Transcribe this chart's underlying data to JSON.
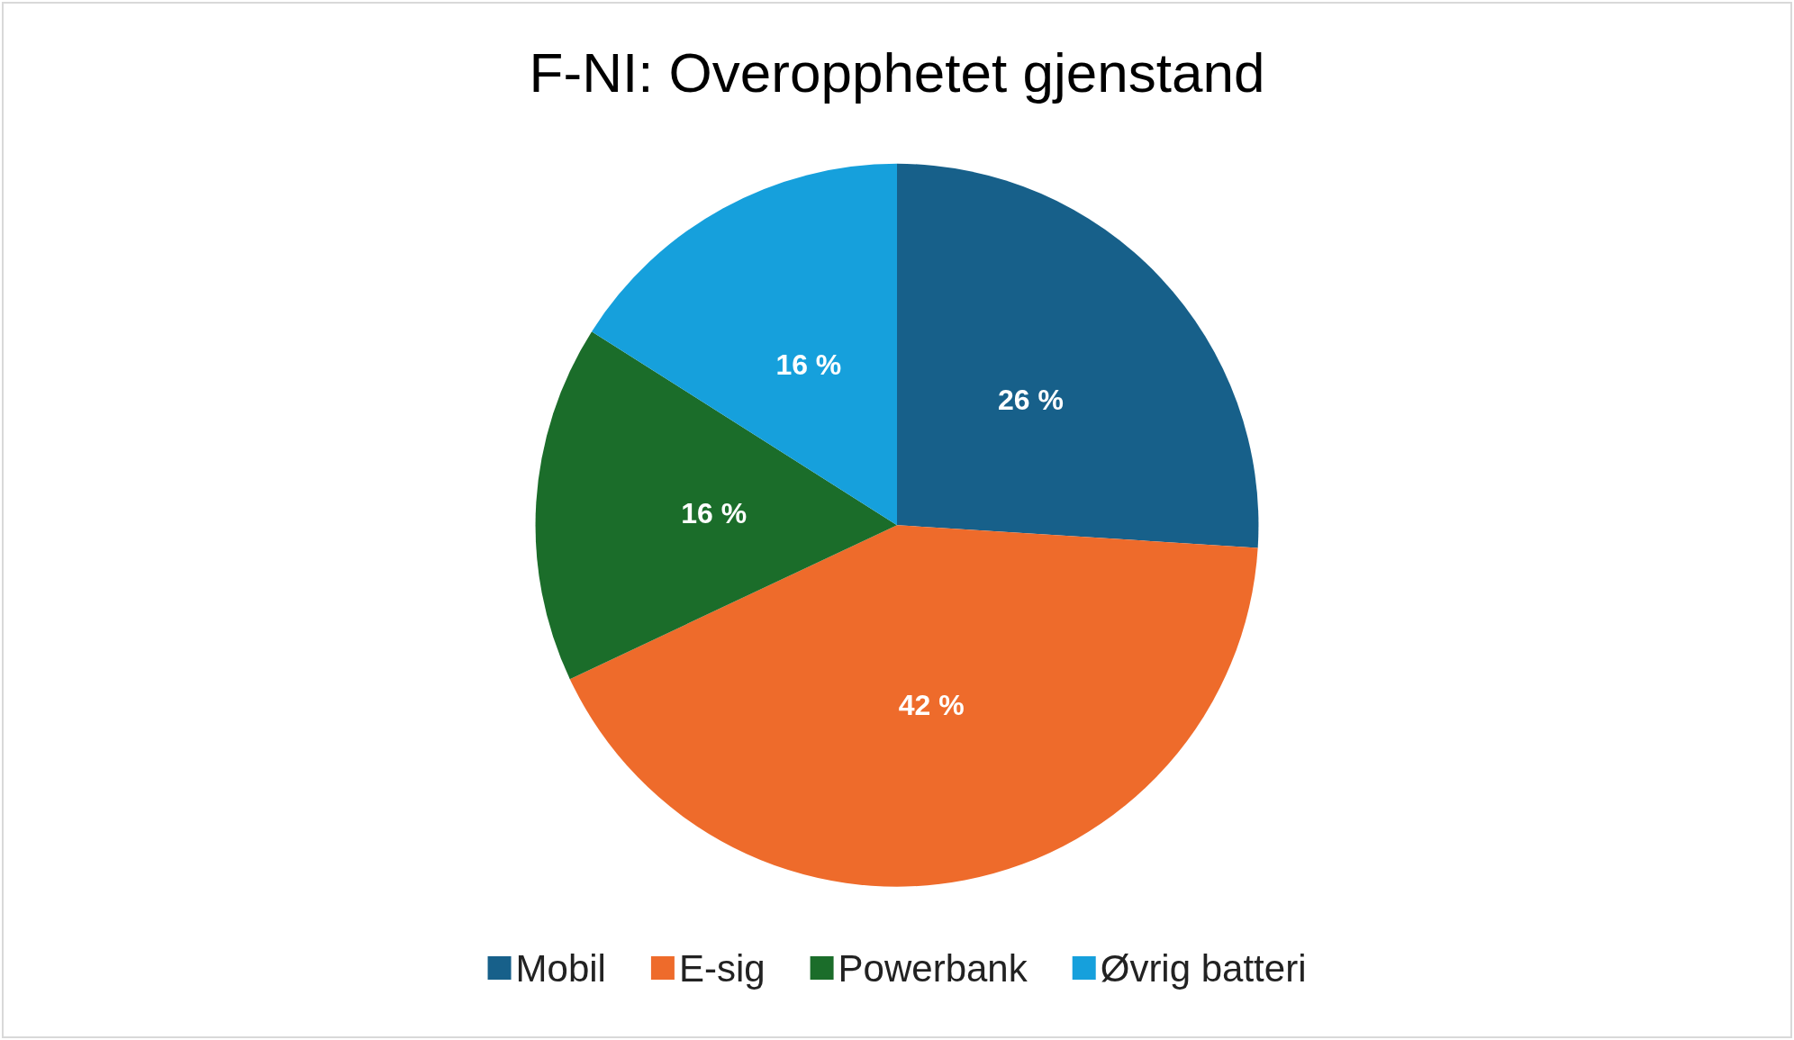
{
  "chart_data": {
    "type": "pie",
    "title": "F-NI: Overopphetet gjenstand",
    "categories": [
      "Mobil",
      "E-sig",
      "Powerbank",
      "Øvrig batteri"
    ],
    "values": [
      26,
      42,
      16,
      16
    ],
    "colors": [
      "#17608a",
      "#ee6b2b",
      "#1b6d2a",
      "#16a0dc"
    ],
    "value_labels": [
      "26 %",
      "42 %",
      "16 %",
      "16 %"
    ],
    "legend": "bottom"
  }
}
